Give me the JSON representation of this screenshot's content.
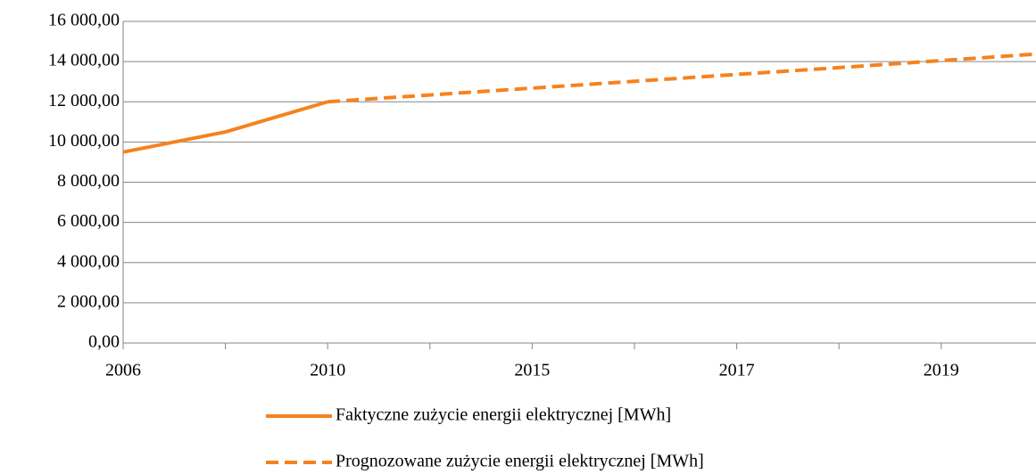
{
  "chart_data": {
    "type": "line",
    "categories": [
      "2006",
      null,
      "2010",
      null,
      "2015",
      null,
      "2017",
      null,
      "2019",
      null
    ],
    "series": [
      {
        "name": "Faktyczne zużycie energii elektrycznej [MWh]",
        "color": "#f5821f",
        "style": "solid",
        "values": [
          9500,
          10500,
          12000,
          null,
          null,
          null,
          null,
          null,
          null,
          null
        ]
      },
      {
        "name": "Prognozowane zużycie energii elektrycznej [MWh]",
        "color": "#f5821f",
        "style": "dashed",
        "values": [
          null,
          null,
          12000,
          12340,
          12680,
          13020,
          13360,
          13700,
          14050,
          14400
        ]
      }
    ],
    "ylim": [
      0,
      16000
    ],
    "yticks": [
      {
        "value": 0,
        "label": "0,00"
      },
      {
        "value": 2000,
        "label": "2 000,00"
      },
      {
        "value": 4000,
        "label": "4 000,00"
      },
      {
        "value": 6000,
        "label": "6 000,00"
      },
      {
        "value": 8000,
        "label": "8 000,00"
      },
      {
        "value": 10000,
        "label": "10 000,00"
      },
      {
        "value": 12000,
        "label": "12 000,00"
      },
      {
        "value": 14000,
        "label": "14 000,00"
      },
      {
        "value": 16000,
        "label": "16 000,00"
      }
    ],
    "grid": true,
    "legend": "bottom"
  }
}
